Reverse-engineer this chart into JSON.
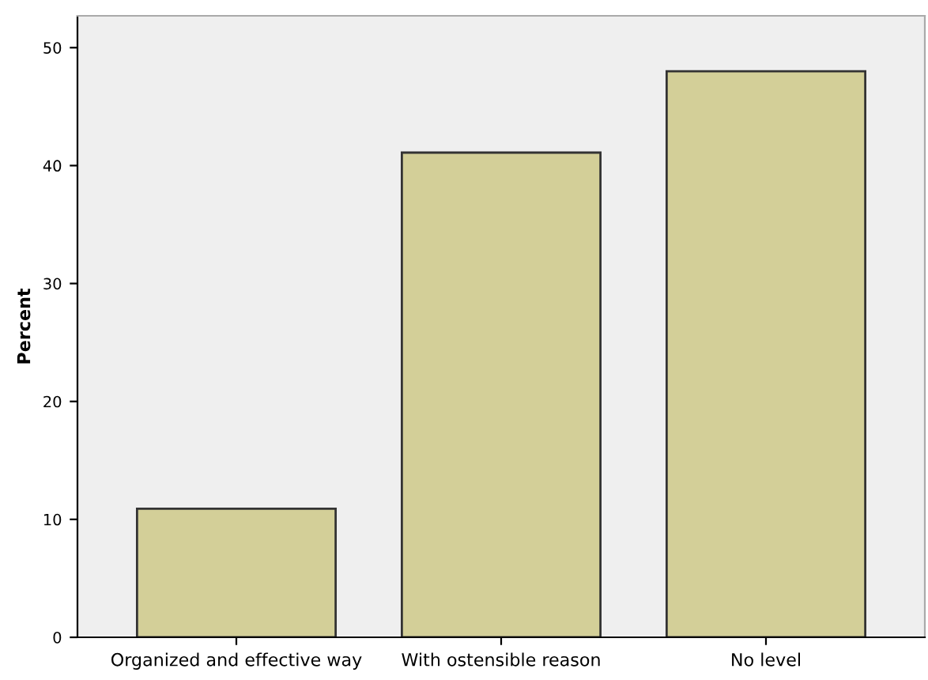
{
  "chart_data": {
    "type": "bar",
    "ylabel": "Percent",
    "categories": [
      "Organized and effective way",
      "With ostensible reason",
      "No level"
    ],
    "values": [
      10.9,
      41.1,
      48.0
    ],
    "color": "#d3cf98",
    "ylim": [
      0,
      52.7
    ],
    "yticks": [
      0,
      10,
      20,
      30,
      40,
      50
    ],
    "grid": false
  }
}
